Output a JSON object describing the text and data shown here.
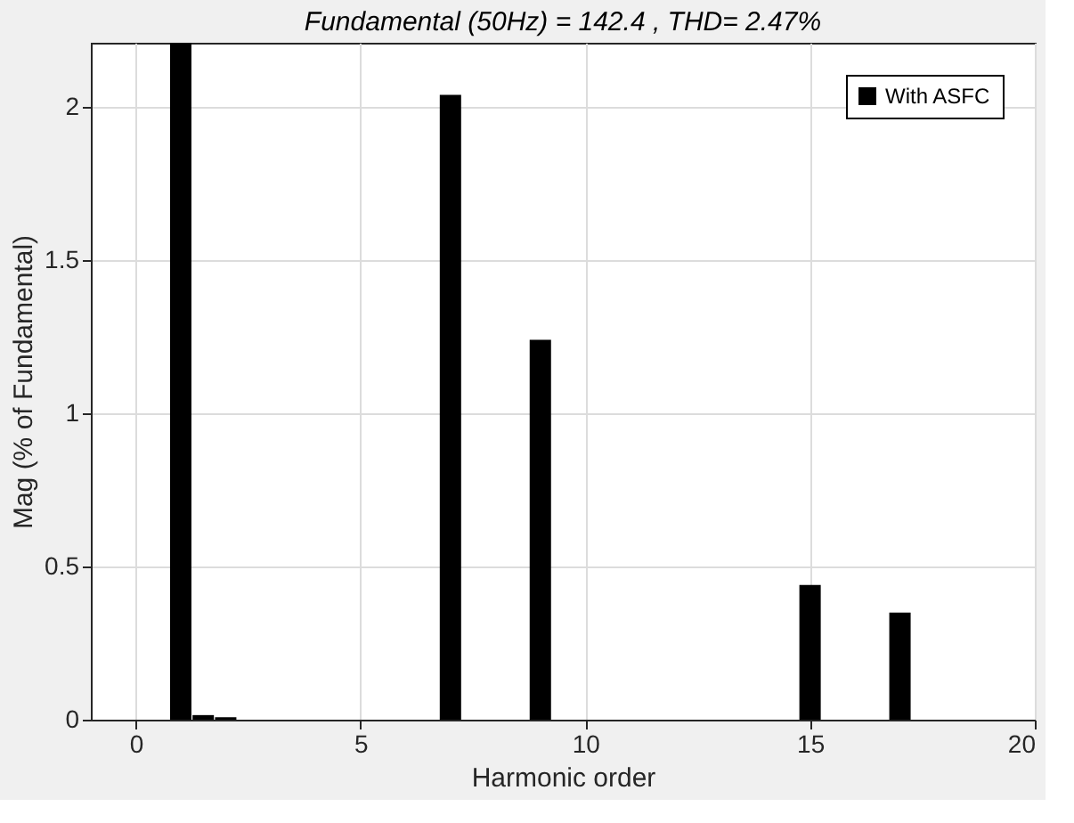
{
  "chart_data": {
    "type": "bar",
    "title": "Fundamental (50Hz) = 142.4 , THD= 2.47%",
    "xlabel": "Harmonic order",
    "ylabel": "Mag (% of Fundamental)",
    "x": [
      1,
      1.5,
      2,
      7,
      9,
      15,
      17
    ],
    "series": [
      {
        "name": "With ASFC",
        "color": "#000000",
        "values": [
          2.21,
          0.015,
          0.008,
          2.04,
          1.24,
          0.44,
          0.35
        ]
      }
    ],
    "xlim": [
      -1,
      20
    ],
    "xticks": [
      0,
      5,
      10,
      15,
      20
    ],
    "ylim": [
      0,
      2.21
    ],
    "yticks": [
      0,
      0.5,
      1,
      1.5,
      2
    ],
    "grid": true,
    "legend": "top right"
  }
}
